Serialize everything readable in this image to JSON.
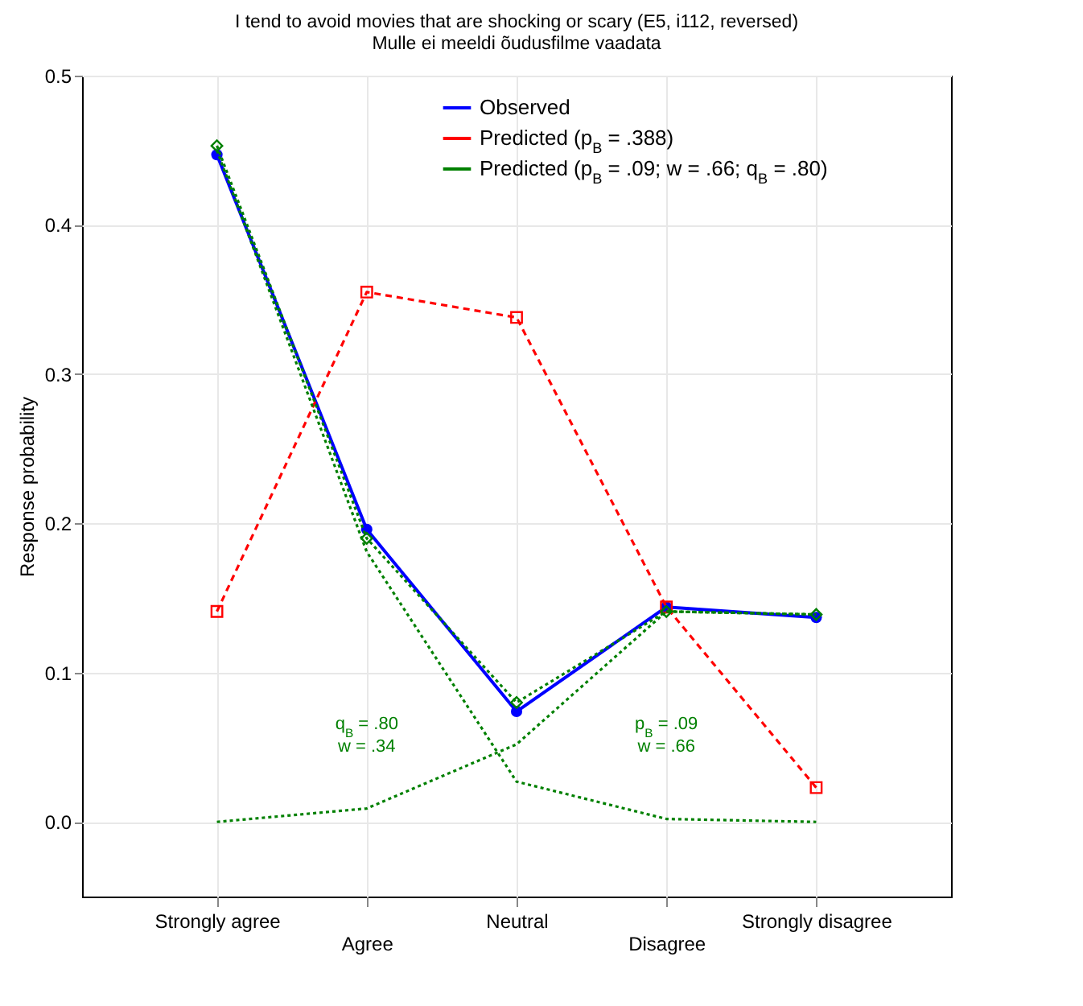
{
  "chart_data": {
    "type": "line",
    "title": "I tend to avoid movies that are shocking or scary (E5, i112, reversed)",
    "subtitle": "Mulle ei meeldi õudusfilme vaadata",
    "ylabel": "Response probability",
    "categories": [
      "Strongly agree",
      "Agree",
      "Neutral",
      "Disagree",
      "Strongly disagree"
    ],
    "series": [
      {
        "name": "Observed",
        "color": "#0000ff",
        "marker": "circle",
        "line_style": "solid",
        "values": [
          0.447,
          0.196,
          0.074,
          0.144,
          0.137
        ]
      },
      {
        "name": "Predicted (p$_{B}$ = .388)",
        "color": "#ff0000",
        "marker": "square",
        "line_style": "dashed",
        "values": [
          0.141,
          0.355,
          0.338,
          0.144,
          0.023
        ]
      },
      {
        "name": "Predicted (p$_{B}$ = .09; w = .66; q$_{B}$ = .80)",
        "color": "#008000",
        "marker": "diamond",
        "line_style": "dotted",
        "values": [
          0.453,
          0.19,
          0.08,
          0.141,
          0.139
        ]
      },
      {
        "color": "#008000",
        "marker": "none",
        "line_style": "dotted",
        "values": [
          0.0,
          0.009,
          0.052,
          0.141,
          0.139
        ]
      },
      {
        "color": "#008000",
        "marker": "none",
        "line_style": "dotted",
        "values": [
          0.45,
          0.181,
          0.027,
          0.002,
          0.0
        ]
      }
    ],
    "annotations": [
      "q$_{B}$ = .80",
      "w = .34",
      "p$_{B}$ = .09",
      "w = .66"
    ],
    "ylim": [
      -0.05,
      0.5
    ],
    "yticks": [
      {
        "value": 0,
        "label": "0.0"
      },
      {
        "value": 0.1,
        "label": "0.1"
      },
      {
        "value": 0.2,
        "label": "0.2"
      },
      {
        "value": 0.3,
        "label": "0.3"
      },
      {
        "value": 0.4,
        "label": "0.4"
      },
      {
        "value": 0.5,
        "label": "0.5"
      }
    ],
    "grid": true,
    "legend": "top right"
  }
}
